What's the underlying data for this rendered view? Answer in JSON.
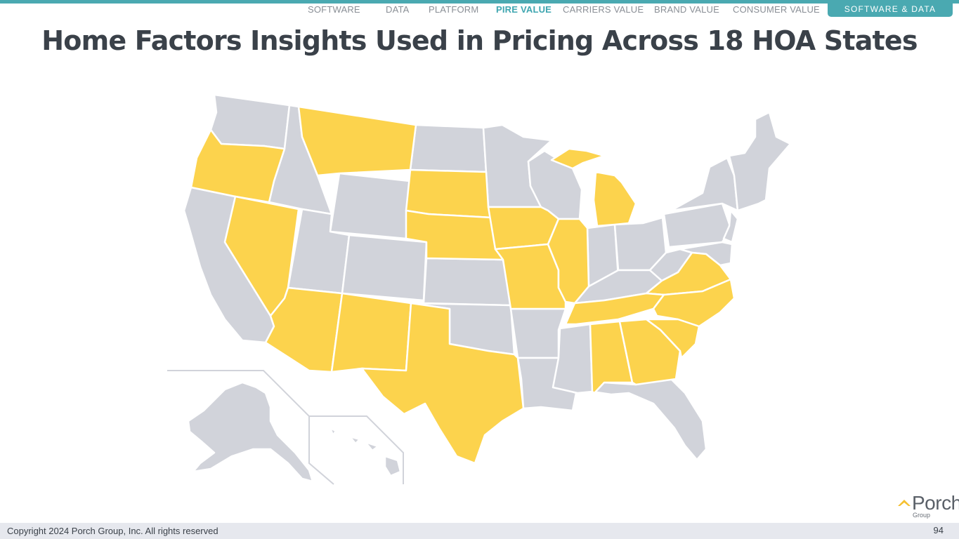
{
  "nav": {
    "items": [
      "SOFTWARE",
      "DATA",
      "PLATFORM",
      "PIRE VALUE",
      "CARRIERS VALUE",
      "BRAND VALUE",
      "CONSUMER VALUE"
    ],
    "active_item": "PIRE VALUE",
    "highlight_button": "SOFTWARE & DATA"
  },
  "title": "Home Factors Insights Used in Pricing Across 18 HOA States",
  "map": {
    "highlighted_states": [
      "OR",
      "NV",
      "AZ",
      "NM",
      "TX",
      "MT",
      "SD",
      "NE",
      "IA",
      "MO",
      "IL",
      "MI",
      "TN",
      "AL",
      "GA",
      "SC",
      "NC",
      "VA"
    ],
    "colors": {
      "highlight": "#fcd34d",
      "default": "#d1d3da",
      "border": "#ffffff"
    }
  },
  "logo": {
    "name": "Porch",
    "sub": "Group"
  },
  "footer": {
    "copyright": "Copyright 2024 Porch Group, Inc. All rights reserved",
    "page": "94"
  },
  "colors": {
    "accent": "#4aa9b1",
    "title": "#3a4149",
    "footer_bg": "#e6e8ee"
  }
}
